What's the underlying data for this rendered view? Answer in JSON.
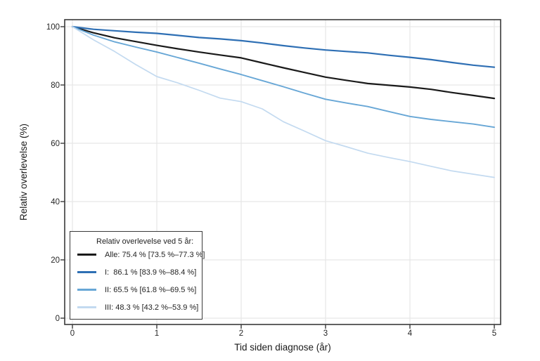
{
  "chart_data": {
    "type": "line",
    "title": "",
    "xlabel": "Tid siden diagnose (år)",
    "ylabel": "Relativ overlevelse (%)",
    "xlim": [
      -0.09,
      5.08
    ],
    "ylim": [
      -2.2,
      102.4
    ],
    "xticks": [
      0,
      1,
      2,
      3,
      4,
      5
    ],
    "yticks": [
      0,
      20,
      40,
      60,
      80,
      100
    ],
    "grid": true,
    "grid_color": "#e7e7e7",
    "frame_color": "#3a3a3a",
    "background": "#ffffff",
    "x": [
      0,
      0.25,
      0.5,
      0.75,
      1,
      1.25,
      1.5,
      1.75,
      2,
      2.25,
      2.5,
      2.75,
      3,
      3.25,
      3.5,
      3.75,
      4,
      4.25,
      4.5,
      4.75,
      5
    ],
    "series": [
      {
        "name": "Alle",
        "color": "#1a1a1a",
        "stroke_width": 2.2,
        "values": [
          100,
          97.9,
          96.2,
          94.9,
          93.6,
          92.4,
          91.3,
          90.3,
          89.3,
          87.6,
          85.9,
          84.3,
          82.7,
          81.6,
          80.5,
          79.9,
          79.3,
          78.5,
          77.4,
          76.4,
          75.4
        ]
      },
      {
        "name": "I",
        "color": "#2e6fb4",
        "stroke_width": 2.2,
        "values": [
          100,
          99.1,
          98.6,
          98.1,
          97.7,
          97.0,
          96.3,
          95.8,
          95.2,
          94.4,
          93.5,
          92.7,
          92.0,
          91.5,
          91.0,
          90.2,
          89.5,
          88.7,
          87.7,
          86.8,
          86.1
        ]
      },
      {
        "name": "II",
        "color": "#68a7d6",
        "stroke_width": 1.9,
        "values": [
          100,
          97.1,
          94.8,
          93.0,
          91.3,
          89.4,
          87.5,
          85.5,
          83.6,
          81.5,
          79.4,
          77.2,
          75.1,
          73.8,
          72.6,
          70.9,
          69.2,
          68.2,
          67.4,
          66.6,
          65.5
        ]
      },
      {
        "name": "III",
        "color": "#c3daf0",
        "stroke_width": 1.7,
        "values": [
          100,
          95.5,
          91.5,
          87.0,
          82.9,
          80.7,
          78.2,
          75.5,
          74.3,
          71.8,
          67.4,
          64.2,
          60.9,
          58.8,
          56.6,
          55.1,
          53.7,
          52.1,
          50.5,
          49.4,
          48.3
        ]
      }
    ],
    "legend": {
      "position": "bottom-left",
      "title": "Relativ overlevelse ved 5 år:",
      "entries": [
        {
          "label": "Alle: 75.4 % [73.5 %–77.3 %]",
          "color": "#1a1a1a"
        },
        {
          "label": "I:  86.1 % [83.9 %–88.4 %]",
          "color": "#2e6fb4"
        },
        {
          "label": "II: 65.5 % [61.8 %–69.5 %]",
          "color": "#68a7d6"
        },
        {
          "label": "III: 48.3 % [43.2 %–53.9 %]",
          "color": "#c3daf0"
        }
      ]
    }
  }
}
